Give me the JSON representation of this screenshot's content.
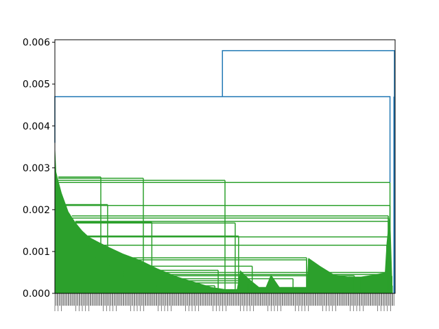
{
  "chart_data": {
    "type": "dendrogram",
    "title": "",
    "xlabel": "",
    "ylabel": "",
    "ylim": [
      0,
      0.00606
    ],
    "y_ticks": [
      "0.000",
      "0.001",
      "0.002",
      "0.003",
      "0.004",
      "0.005",
      "0.006"
    ],
    "y_tick_values": [
      0,
      0.001,
      0.002,
      0.003,
      0.004,
      0.005,
      0.006
    ],
    "leaf_axis_range": [
      0,
      1
    ],
    "colors": {
      "cluster_green": "#2ca02c",
      "link_blue": "#1f77b4",
      "axis": "#000000"
    },
    "links": [
      {
        "name": "root",
        "left_x": 0.4925,
        "left_y": 0.0047,
        "right_x": 0.998,
        "right_y": 0.0047,
        "height": 0.0058
      },
      {
        "name": "left-merge",
        "left_x": 0.0,
        "left_y": 0.0036,
        "right_x": 0.985,
        "right_y": 0.00265,
        "height": 0.0047
      }
    ],
    "green_levels": [
      {
        "y": 0.00265,
        "from": 0.008,
        "to": 0.985
      },
      {
        "y": 0.0027,
        "from": 0.01,
        "to": 0.5
      },
      {
        "y": 0.00275,
        "from": 0.01,
        "to": 0.26
      },
      {
        "y": 0.00278,
        "from": 0.01,
        "to": 0.135
      },
      {
        "y": 0.0021,
        "from": 0.03,
        "to": 0.985
      },
      {
        "y": 0.00212,
        "from": 0.03,
        "to": 0.155
      },
      {
        "y": 0.00185,
        "from": 0.05,
        "to": 0.98
      },
      {
        "y": 0.0018,
        "from": 0.05,
        "to": 0.98
      },
      {
        "y": 0.00172,
        "from": 0.06,
        "to": 0.98
      },
      {
        "y": 0.00168,
        "from": 0.06,
        "to": 0.53
      },
      {
        "y": 0.0017,
        "from": 0.06,
        "to": 0.285
      },
      {
        "y": 0.00135,
        "from": 0.08,
        "to": 0.98
      },
      {
        "y": 0.00137,
        "from": 0.08,
        "to": 0.54
      },
      {
        "y": 0.00115,
        "from": 0.1,
        "to": 0.98
      },
      {
        "y": 0.00085,
        "from": 0.12,
        "to": 0.74
      },
      {
        "y": 0.0008,
        "from": 0.14,
        "to": 0.74
      },
      {
        "y": 0.00065,
        "from": 0.16,
        "to": 0.58
      },
      {
        "y": 0.00055,
        "from": 0.18,
        "to": 0.48
      },
      {
        "y": 0.0005,
        "from": 0.2,
        "to": 0.98
      },
      {
        "y": 0.00045,
        "from": 0.2,
        "to": 0.98
      },
      {
        "y": 0.00042,
        "from": 0.2,
        "to": 0.88
      },
      {
        "y": 0.00035,
        "from": 0.22,
        "to": 0.7
      },
      {
        "y": 0.0003,
        "from": 0.25,
        "to": 0.57
      },
      {
        "y": 0.00025,
        "from": 0.25,
        "to": 0.57
      },
      {
        "y": 0.00018,
        "from": 0.3,
        "to": 0.47
      }
    ],
    "green_envelope": [
      [
        0.0,
        0.0036
      ],
      [
        0.004,
        0.0029
      ],
      [
        0.01,
        0.0027
      ],
      [
        0.02,
        0.0024
      ],
      [
        0.04,
        0.00195
      ],
      [
        0.06,
        0.0017
      ],
      [
        0.08,
        0.0015
      ],
      [
        0.1,
        0.00135
      ],
      [
        0.13,
        0.00122
      ],
      [
        0.16,
        0.0011
      ],
      [
        0.2,
        0.00095
      ],
      [
        0.25,
        0.0008
      ],
      [
        0.3,
        0.0006
      ],
      [
        0.36,
        0.0004
      ],
      [
        0.42,
        0.00025
      ],
      [
        0.46,
        0.00015
      ],
      [
        0.5,
        0.0001
      ],
      [
        0.535,
        0.0001
      ],
      [
        0.545,
        0.00055
      ],
      [
        0.57,
        0.00035
      ],
      [
        0.6,
        0.00015
      ],
      [
        0.62,
        0.00015
      ],
      [
        0.635,
        0.00045
      ],
      [
        0.66,
        0.00015
      ],
      [
        0.74,
        0.00015
      ],
      [
        0.745,
        0.00085
      ],
      [
        0.78,
        0.00065
      ],
      [
        0.82,
        0.00045
      ],
      [
        0.86,
        0.0004
      ],
      [
        0.9,
        0.0004
      ],
      [
        0.94,
        0.00045
      ],
      [
        0.97,
        0.0005
      ],
      [
        0.975,
        0.0012
      ],
      [
        0.985,
        0.002
      ],
      [
        0.992,
        0.0002
      ],
      [
        0.993,
        0.0
      ]
    ]
  }
}
